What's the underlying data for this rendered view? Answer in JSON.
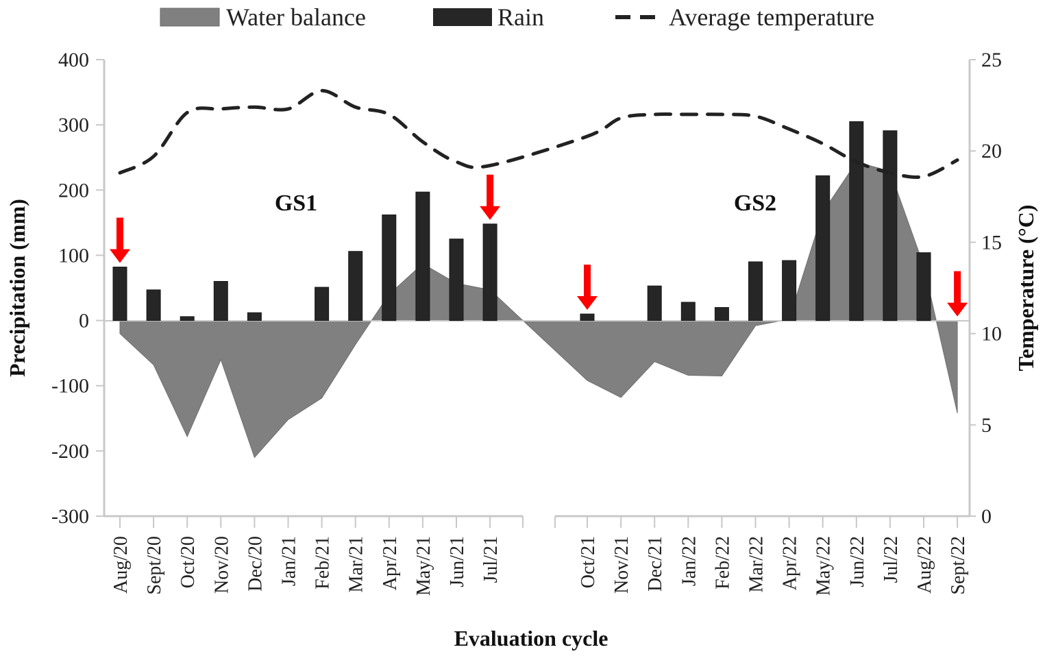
{
  "chart_data": {
    "type": "bar",
    "title": "",
    "xlabel": "Evaluation cycle",
    "ylabel": "Precipitation (mm)",
    "ylabel_right": "Temperature (°C)",
    "ylim": [
      -300,
      400
    ],
    "ylim_right": [
      0,
      25
    ],
    "yticks": [
      400,
      300,
      200,
      100,
      0,
      -100,
      -200,
      -300
    ],
    "yticks_labels": [
      "400",
      "300",
      "200",
      "100",
      "0",
      "-100",
      "-200",
      "-300"
    ],
    "yticks_right": [
      25,
      20,
      15,
      10,
      5,
      0
    ],
    "yticks_right_labels": [
      "25",
      "20",
      "15",
      "10",
      "5",
      "0"
    ],
    "grid": false,
    "legend_position": "top",
    "legend": [
      {
        "name": "Water balance",
        "kind": "area",
        "color": "#808080"
      },
      {
        "name": "Rain",
        "kind": "bar",
        "color": "#262626"
      },
      {
        "name": "Average temperature",
        "kind": "dashed-line",
        "color": "#222222"
      }
    ],
    "colors": {
      "water_balance": "#808080",
      "rain": "#262626",
      "temperature": "#222222",
      "arrow": "#ff0000",
      "axis": "#c8c8c8"
    },
    "segments": [
      {
        "name": "GS1",
        "categories": [
          "Aug/20",
          "Sept/20",
          "Oct/20",
          "Nov/20",
          "Dec/20",
          "Jan/21",
          "Feb/21",
          "Mar/21",
          "Apr/21",
          "May/21",
          "Jun/21",
          "Jul/21"
        ],
        "rain": [
          82,
          47,
          6,
          60,
          12,
          0,
          51,
          106,
          162,
          197,
          125,
          148
        ],
        "water_balance": [
          -20,
          -68,
          -178,
          -60,
          -210,
          -152,
          -119,
          -37,
          40,
          87,
          57,
          47
        ],
        "temperature": [
          18.8,
          19.7,
          22.1,
          22.3,
          22.4,
          22.3,
          23.3,
          22.4,
          22.0,
          20.5,
          19.4,
          19.2
        ],
        "arrows_at": [
          "Aug/20",
          "Jul/21"
        ]
      },
      {
        "name": "GS2",
        "categories": [
          "Oct/21",
          "Nov/21",
          "Dec/21",
          "Jan/22",
          "Feb/22",
          "Mar/22",
          "Apr/22",
          "May/22",
          "Jun/22",
          "Jul/22",
          "Aug/22",
          "Sept/22"
        ],
        "rain": [
          10,
          0,
          53,
          28,
          20,
          90,
          92,
          222,
          305,
          291,
          104,
          0
        ],
        "water_balance": [
          -92,
          -118,
          -63,
          -84,
          -85,
          -8,
          2,
          166,
          243,
          229,
          84,
          -142
        ],
        "temperature": [
          20.8,
          21.8,
          22.0,
          22.0,
          22.0,
          21.9,
          21.2,
          20.4,
          19.4,
          18.8,
          18.6,
          19.5
        ],
        "arrows_at": [
          "Oct/21",
          "Sept/22"
        ]
      }
    ],
    "annotations": [
      {
        "text": "GS1",
        "segment": "GS1"
      },
      {
        "text": "GS2",
        "segment": "GS2"
      }
    ]
  }
}
